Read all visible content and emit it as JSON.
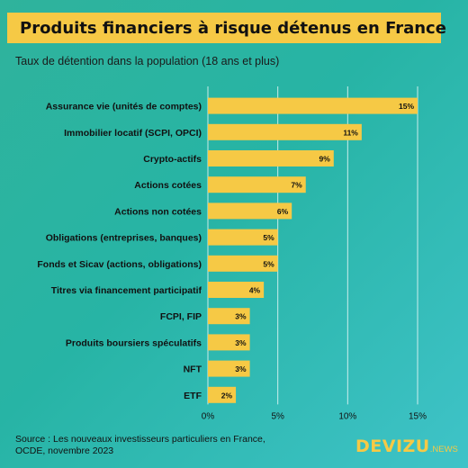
{
  "title": "Produits financiers à risque détenus en France",
  "subtitle": "Taux de détention dans la population (18 ans et plus)",
  "source_line1": "Source : Les nouveaux investisseurs particuliers en France,",
  "source_line2": "OCDE, novembre 2023",
  "brand_main": "DEVIZU",
  "brand_suffix": ".NEWS",
  "colors": {
    "bar": "#f6c945",
    "banner": "#f6c945",
    "grid": "#ffffff"
  },
  "chart_data": {
    "type": "bar",
    "orientation": "horizontal",
    "categories": [
      "Assurance vie (unités de comptes)",
      "Immobilier locatif (SCPI, OPCI)",
      "Crypto-actifs",
      "Actions cotées",
      "Actions non cotées",
      "Obligations (entreprises, banques)",
      "Fonds et Sicav (actions, obligations)",
      "Titres via financement participatif",
      "FCPI, FIP",
      "Produits boursiers spéculatifs",
      "NFT",
      "ETF"
    ],
    "values": [
      15,
      11,
      9,
      7,
      6,
      5,
      5,
      4,
      3,
      3,
      3,
      2
    ],
    "value_labels": [
      "15%",
      "11%",
      "9%",
      "7%",
      "6%",
      "5%",
      "5%",
      "4%",
      "3%",
      "3%",
      "3%",
      "2%"
    ],
    "xlim": [
      0,
      15
    ],
    "xticks": [
      0,
      5,
      10,
      15
    ],
    "xtick_labels": [
      "0%",
      "5%",
      "10%",
      "15%"
    ],
    "grid": true
  }
}
